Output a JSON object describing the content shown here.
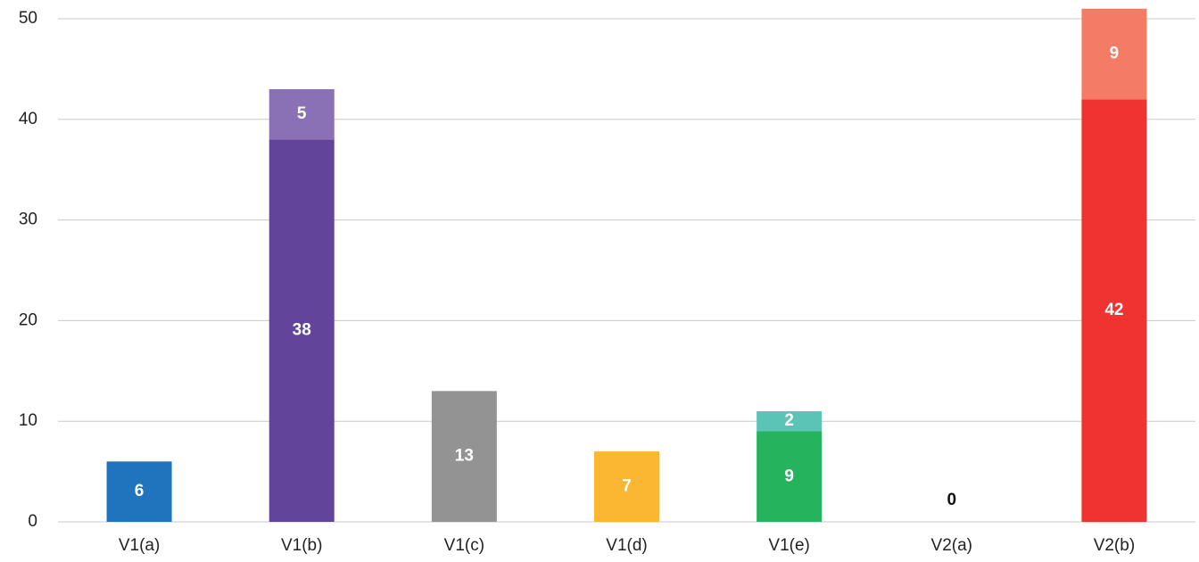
{
  "chart_data": {
    "type": "stacked_bar",
    "categories": [
      "V1(a)",
      "V1(b)",
      "V1(c)",
      "V1(d)",
      "V1(e)",
      "V2(a)",
      "V2(b)"
    ],
    "series": [
      {
        "values": [
          6,
          38,
          13,
          7,
          9,
          0,
          42
        ],
        "colors": [
          "#1f74bd",
          "#62459a",
          "#939393",
          "#fbb732",
          "#25b45d",
          "#7fb3e0",
          "#ee3330"
        ]
      },
      {
        "values": [
          null,
          5,
          null,
          null,
          2,
          null,
          9
        ],
        "colors": [
          null,
          "#8a70b4",
          null,
          null,
          "#5bc4b7",
          null,
          "#f47b64"
        ]
      }
    ],
    "ylim": [
      0,
      50
    ],
    "yticks": [
      0,
      10,
      20,
      30,
      40,
      50
    ],
    "grid": true
  }
}
